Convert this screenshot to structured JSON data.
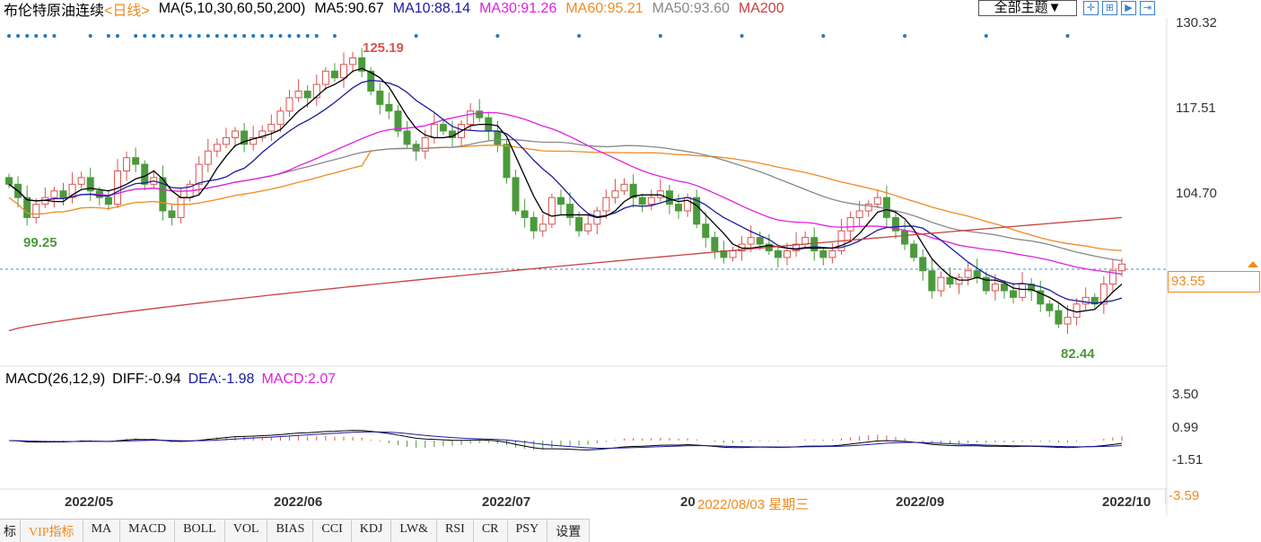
{
  "header": {
    "title": "布伦特原油连续",
    "period": "<日线>",
    "ma_label": "MA(5,10,30,60,50,200)",
    "ma5": "MA5:90.67",
    "ma10": "MA10:88.14",
    "ma30": "MA30:91.26",
    "ma60": "MA60:95.21",
    "ma50": "MA50:93.60",
    "ma200": "MA200"
  },
  "toolbar": {
    "theme_label": "全部主题▼",
    "tools": [
      "crosshair-icon",
      "zoom-in-icon",
      "play-icon",
      "fit-right-icon"
    ]
  },
  "colors": {
    "up": "#d9534f",
    "down": "#4a9a3c",
    "ma5": "#000000",
    "ma10": "#1a1aa0",
    "ma30": "#e020e0",
    "ma60": "#f08a20",
    "ma50": "#888888",
    "ma200": "#c84040"
  },
  "price_axis": {
    "ticks": [
      "130.32",
      "117.51",
      "104.70"
    ],
    "current": "93.55"
  },
  "annotations": {
    "high": "125.19",
    "low_start": "99.25",
    "low_end": "82.44"
  },
  "macd": {
    "label": "MACD(26,12,9)",
    "diff": "DIFF:-0.94",
    "dea": "DEA:-1.98",
    "macd": "MACD:2.07",
    "ticks": [
      "3.50",
      "0.99",
      "-1.51",
      "-3.59"
    ]
  },
  "x_axis": {
    "labels": [
      "2022/05",
      "2022/06",
      "2022/07",
      "20",
      "2022/09",
      "2022/10"
    ],
    "tooltip": "2022/08/03 星期三"
  },
  "tabs": [
    "标",
    "VIP指标",
    "MA",
    "MACD",
    "BOLL",
    "VOL",
    "BIAS",
    "CCI",
    "KDJ",
    "LW&",
    "RSI",
    "CR",
    "PSY",
    "设置"
  ],
  "chart_data": {
    "type": "candlestick",
    "ylim": [
      78,
      131
    ],
    "closes": [
      106,
      104,
      101,
      103,
      104,
      105,
      104,
      106,
      107,
      105,
      104,
      103,
      108,
      110,
      109,
      106,
      107,
      102,
      101,
      104,
      106,
      109,
      111,
      112,
      113,
      114,
      112,
      113,
      114,
      115,
      117,
      119,
      120,
      119,
      121,
      123,
      122,
      124,
      125,
      123,
      120,
      118,
      117,
      114,
      112,
      111,
      113,
      115,
      114,
      113,
      115,
      117,
      116,
      114,
      112,
      107,
      102,
      101,
      99,
      100,
      104,
      103,
      101,
      99,
      100,
      102,
      104,
      105,
      106,
      104,
      103,
      104,
      105,
      103,
      102,
      104,
      100,
      98,
      96,
      95,
      96,
      97,
      98,
      97,
      96,
      95,
      96,
      97,
      98,
      96,
      95,
      96,
      99,
      101,
      102,
      103,
      104,
      101,
      99,
      97,
      95,
      93,
      90,
      92,
      91,
      92,
      93,
      92,
      90,
      91,
      90,
      89,
      91,
      90,
      88,
      87,
      85,
      86,
      88,
      89,
      88,
      91,
      93,
      94
    ],
    "ma200_range": [
      84,
      101
    ]
  }
}
